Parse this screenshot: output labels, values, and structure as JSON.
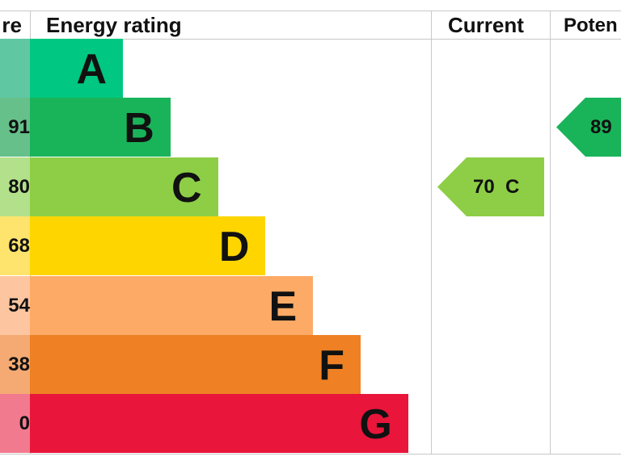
{
  "headers": {
    "score": "re",
    "rating": "Energy rating",
    "current": "Current",
    "potential": "Poten"
  },
  "chart_data": {
    "type": "bar",
    "categories": [
      "A",
      "B",
      "C",
      "D",
      "E",
      "F",
      "G"
    ],
    "score_labels": [
      "",
      "91",
      "80",
      "68",
      "54",
      "38",
      "0"
    ],
    "bar_colors": [
      "#00c781",
      "#19b459",
      "#8dce46",
      "#ffd500",
      "#fcaa65",
      "#ef8023",
      "#e9153b"
    ],
    "score_colors": [
      "#5fc8a2",
      "#66c08a",
      "#b3e08a",
      "#fee46c",
      "#fdc6a0",
      "#f4aa72",
      "#f27a8f"
    ],
    "current": {
      "value": 70,
      "band": "C",
      "label": "70  C",
      "color": "#8dce46"
    },
    "potential": {
      "value": 89,
      "band": "B",
      "label": "89",
      "color": "#19b459"
    }
  }
}
